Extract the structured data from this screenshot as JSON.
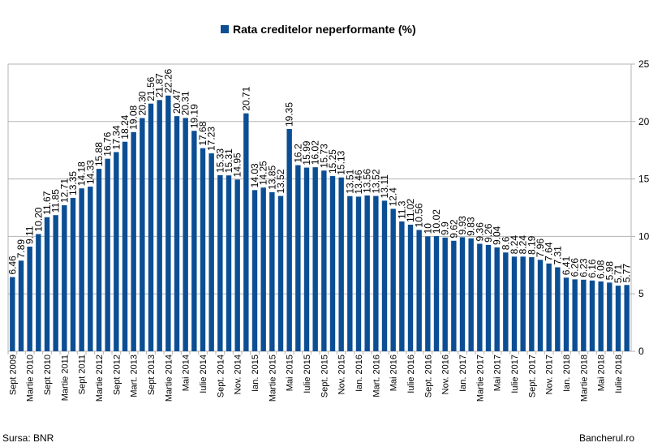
{
  "source_text": "Sursa: BNR",
  "brand_text": "Bancherul.ro",
  "chart_data": {
    "type": "bar",
    "title": "",
    "legend": "Rata creditelor neperformante (%)",
    "legend_position": "top",
    "bar_color": "#0b4e94",
    "xlabel": "",
    "ylabel": "",
    "ylim": [
      0,
      25
    ],
    "yticks": [
      0,
      5,
      10,
      15,
      20,
      25
    ],
    "y_axis_side": "right",
    "grid": true,
    "labels": [
      "6.46",
      "7.89",
      "9.11",
      "10.20",
      "11.67",
      "11.85",
      "12.71",
      "13.35",
      "14.18",
      "14.33",
      "15.88",
      "16.76",
      "17.34",
      "18.24",
      "19.08",
      "20.30",
      "21.56",
      "21.87",
      "22.26",
      "20.47",
      "20.31",
      "19.19",
      "17.68",
      "17.23",
      "15.33",
      "15.31",
      "14.95",
      "20.71",
      "14.03",
      "14.25",
      "13.85",
      "13.52",
      "19.35",
      "16.2",
      "15.99",
      "16.02",
      "15.73",
      "15.25",
      "15.13",
      "13.51",
      "13.46",
      "13.56",
      "13.52",
      "13.11",
      "12.4",
      "11.3",
      "11.02",
      "10.56",
      "10",
      "10.02",
      "9.9",
      "9.62",
      "9.93",
      "9.83",
      "9.36",
      "9.26",
      "9.04",
      "8.6",
      "8.24",
      "8.24",
      "8.19",
      "7.96",
      "7.64",
      "7.31",
      "6.41",
      "6.26",
      "6.23",
      "6.16",
      "6.08",
      "5.98",
      "5.71",
      "5.77"
    ],
    "values": [
      6.46,
      7.89,
      9.11,
      10.2,
      11.67,
      11.85,
      12.71,
      13.35,
      14.18,
      14.33,
      15.88,
      16.76,
      17.34,
      18.24,
      19.08,
      20.3,
      21.56,
      21.87,
      22.26,
      20.47,
      20.31,
      19.19,
      17.68,
      17.23,
      15.33,
      15.31,
      14.95,
      20.71,
      14.03,
      14.25,
      13.85,
      13.52,
      19.35,
      16.2,
      15.99,
      16.02,
      15.73,
      15.25,
      15.13,
      13.51,
      13.46,
      13.56,
      13.52,
      13.11,
      12.4,
      11.3,
      11.02,
      10.56,
      10,
      10.02,
      9.9,
      9.62,
      9.93,
      9.83,
      9.36,
      9.26,
      9.04,
      8.6,
      8.24,
      8.24,
      8.19,
      7.96,
      7.64,
      7.31,
      6.41,
      6.26,
      6.23,
      6.16,
      6.08,
      5.98,
      5.71,
      5.77
    ],
    "categories": [
      "Sept 2009",
      "",
      "Martie 2010",
      "",
      "Sept 2010",
      "",
      "Martie 2011",
      "",
      "Sept 2011",
      "",
      "Martie 2012",
      "",
      "Sept 2012",
      "",
      "Mart. 2013",
      "",
      "Sept 2013",
      "",
      "Martie 2014",
      "",
      "Mai 2014",
      "",
      "Iulie 2014",
      "",
      "Sept. 2014",
      "",
      "Nov. 2014",
      "",
      "Ian. 2015",
      "",
      "Martie 2015",
      "",
      "Mai 2015",
      "",
      "Iulie 2015",
      "",
      "Sept. 2015",
      "",
      "Nov. 2015",
      "",
      "Ian. 2016",
      "",
      "Mart. 2016",
      "",
      "Mai 2016",
      "",
      "Iulie 2016",
      "",
      "Sept. 2016",
      "",
      "Nov. 2016",
      "",
      "Ian. 2017",
      "",
      "Martie 2017",
      "",
      "Mai 2017",
      "",
      "Iulie 2017",
      "",
      "Sept. 2017",
      "",
      "Nov. 2017",
      "",
      "Ian. 2018",
      "",
      "Martie 2018",
      "",
      "Mai 2018",
      "",
      "Iulie 2018",
      ""
    ]
  }
}
